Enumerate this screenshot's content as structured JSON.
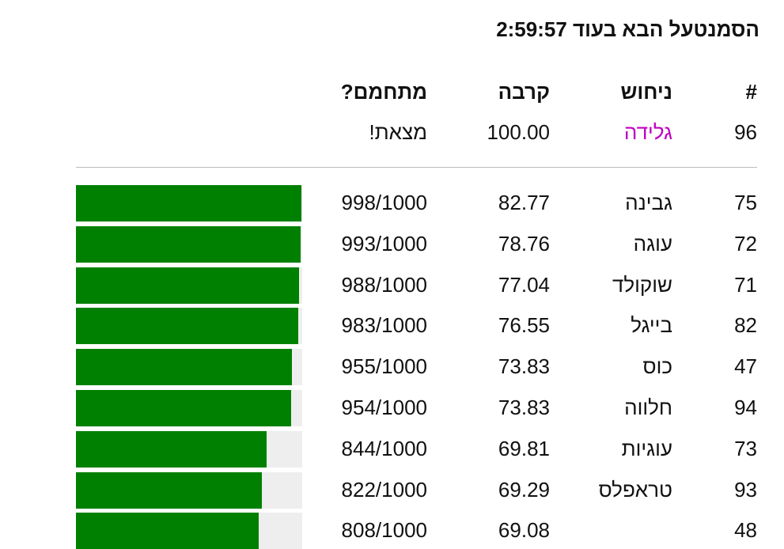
{
  "title": "הסמנטעל הבא בעוד 2:59:57",
  "table": {
    "headers": [
      "#",
      "ניחוש",
      "קרבה",
      "מתחמם?"
    ],
    "guess": {
      "number": 96,
      "word": "גלידה",
      "proximity": "100.00",
      "status": "מצאת!"
    },
    "scale_max": 1000,
    "rows": [
      {
        "number": 75,
        "word": "גבינה",
        "proximity": "82.77",
        "progress": {
          "value": 998,
          "label": "998/1000"
        }
      },
      {
        "number": 72,
        "word": "עוגה",
        "proximity": "78.76",
        "progress": {
          "value": 993,
          "label": "993/1000"
        }
      },
      {
        "number": 71,
        "word": "שוקולד",
        "proximity": "77.04",
        "progress": {
          "value": 988,
          "label": "988/1000"
        }
      },
      {
        "number": 82,
        "word": "בייגל",
        "proximity": "76.55",
        "progress": {
          "value": 983,
          "label": "983/1000"
        }
      },
      {
        "number": 47,
        "word": "כוס",
        "proximity": "73.83",
        "progress": {
          "value": 955,
          "label": "955/1000"
        }
      },
      {
        "number": 94,
        "word": "חלווה",
        "proximity": "73.83",
        "progress": {
          "value": 954,
          "label": "954/1000"
        }
      },
      {
        "number": 73,
        "word": "עוגיות",
        "proximity": "69.81",
        "progress": {
          "value": 844,
          "label": "844/1000"
        }
      },
      {
        "number": 93,
        "word": "טראפלס",
        "proximity": "69.29",
        "progress": {
          "value": 822,
          "label": "822/1000"
        }
      },
      {
        "number": 48,
        "proximity": "69.08",
        "progress": {
          "value": 808,
          "label": "808/1000"
        }
      }
    ]
  }
}
